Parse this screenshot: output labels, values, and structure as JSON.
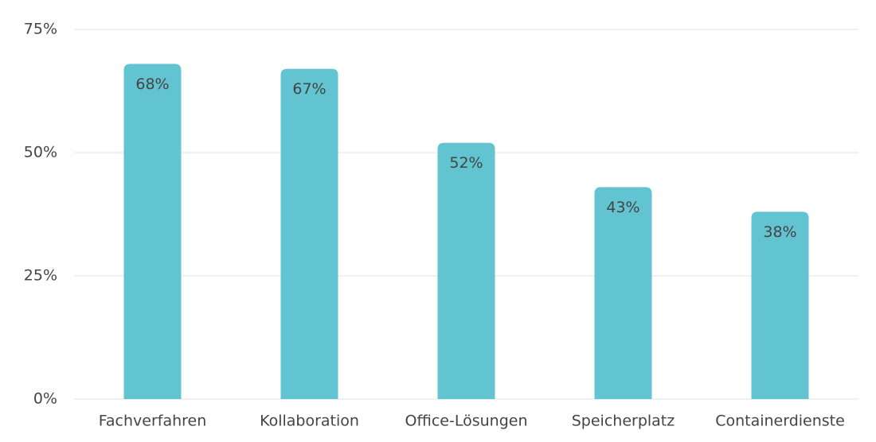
{
  "chart_data": {
    "type": "bar",
    "categories": [
      "Fachverfahren",
      "Kollaboration",
      "Office-Lösungen",
      "Speicherplatz",
      "Containerdienste"
    ],
    "values": [
      68,
      67,
      52,
      43,
      38
    ],
    "value_labels": [
      "68%",
      "67%",
      "52%",
      "43%",
      "38%"
    ],
    "color": "#62c3d1",
    "ylim": [
      0,
      75
    ],
    "yticks": [
      {
        "value": 0,
        "label": "0%"
      },
      {
        "value": 25,
        "label": "25%"
      },
      {
        "value": 50,
        "label": "50%"
      },
      {
        "value": 75,
        "label": "75%"
      }
    ],
    "grid": true
  }
}
